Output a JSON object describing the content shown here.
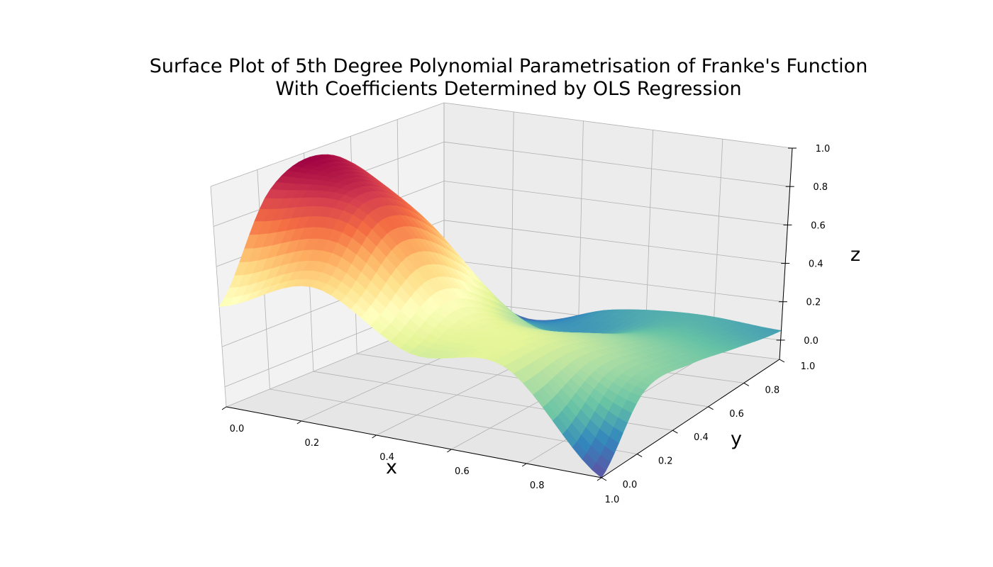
{
  "chart_data": {
    "type": "surface",
    "title_lines": [
      "Surface Plot of 5th Degree Polynomial Parametrisation of Franke's Function",
      "With Coefficients Determined by OLS Regression"
    ],
    "xlabel": "x",
    "ylabel": "y",
    "zlabel": "z",
    "xlim": [
      0,
      1
    ],
    "ylim": [
      0,
      1
    ],
    "zlim": [
      -0.1,
      1.0
    ],
    "xticks": [
      "0.0",
      "0.2",
      "0.4",
      "0.6",
      "0.8",
      "1.0"
    ],
    "yticks": [
      "0.0",
      "0.2",
      "0.4",
      "0.6",
      "0.8",
      "1.0"
    ],
    "zticks": [
      "0.0",
      "0.2",
      "0.4",
      "0.6",
      "0.8",
      "1.0"
    ],
    "grid": true,
    "colormap": "Spectral_r",
    "colormap_stops": [
      "#5e4fa2",
      "#3288bd",
      "#66c2a5",
      "#abdda4",
      "#e6f598",
      "#ffffbf",
      "#fee08b",
      "#fdae61",
      "#f46d43",
      "#d53e4f",
      "#9e0142"
    ],
    "surface_grid_points": {
      "x": [
        0.0,
        0.25,
        0.5,
        0.75,
        1.0
      ],
      "y": [
        0.0,
        0.25,
        0.5,
        0.75,
        1.0
      ],
      "z_rows_by_x": [
        [
          0.4,
          0.88,
          0.95,
          0.65,
          0.15
        ],
        [
          0.55,
          0.85,
          0.7,
          0.2,
          -0.05
        ],
        [
          0.3,
          0.4,
          0.25,
          0.05,
          0.05
        ],
        [
          0.3,
          0.3,
          0.22,
          0.12,
          0.08
        ],
        [
          -0.1,
          0.15,
          0.15,
          0.1,
          0.05
        ]
      ]
    }
  }
}
